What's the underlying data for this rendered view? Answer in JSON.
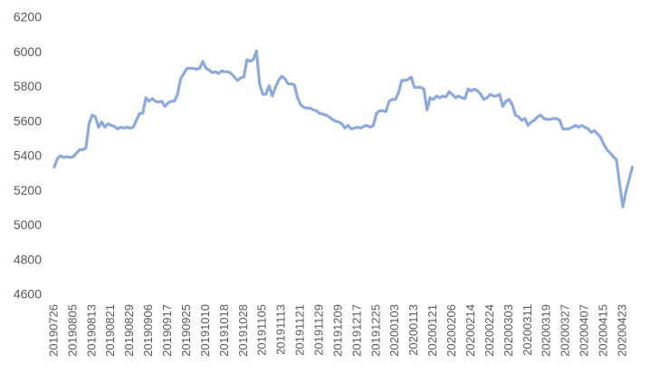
{
  "chart_data": {
    "type": "line",
    "color": "#8eaadb",
    "ylim": [
      4600,
      6200
    ],
    "yticks": [
      4600,
      4800,
      5000,
      5200,
      5400,
      5600,
      5800,
      6000,
      6200
    ],
    "grid": false,
    "categories": [
      "20190726",
      null,
      null,
      null,
      null,
      null,
      "20190805",
      null,
      null,
      null,
      null,
      null,
      "20190813",
      null,
      null,
      null,
      null,
      null,
      "20190821",
      null,
      null,
      null,
      null,
      null,
      "20190829",
      null,
      null,
      null,
      null,
      null,
      "20190906",
      null,
      null,
      null,
      null,
      null,
      "20190917",
      null,
      null,
      null,
      null,
      null,
      "20190925",
      null,
      null,
      null,
      null,
      null,
      "20191010",
      null,
      null,
      null,
      null,
      null,
      "20191018",
      null,
      null,
      null,
      null,
      null,
      "20191028",
      null,
      null,
      null,
      null,
      null,
      "20191105",
      null,
      null,
      null,
      null,
      null,
      "20191113",
      null,
      null,
      null,
      null,
      null,
      "20191121",
      null,
      null,
      null,
      null,
      null,
      "20191129",
      null,
      null,
      null,
      null,
      null,
      "20191209",
      null,
      null,
      null,
      null,
      null,
      "20191217",
      null,
      null,
      null,
      null,
      null,
      "20191225",
      null,
      null,
      null,
      null,
      null,
      "20200103",
      null,
      null,
      null,
      null,
      null,
      "20200113",
      null,
      null,
      null,
      null,
      null,
      "20200121",
      null,
      null,
      null,
      null,
      null,
      "20200206",
      null,
      null,
      null,
      null,
      null,
      "20200214",
      null,
      null,
      null,
      null,
      null,
      "20200224",
      null,
      null,
      null,
      null,
      null,
      "20200303",
      null,
      null,
      null,
      null,
      null,
      "20200311",
      null,
      null,
      null,
      null,
      null,
      "20200319",
      null,
      null,
      null,
      null,
      null,
      "20200327",
      null,
      null,
      null,
      null,
      null,
      "20200407",
      null,
      null,
      null,
      null,
      null,
      "20200415",
      null,
      null,
      null,
      null,
      null,
      "20200423",
      null,
      null,
      null
    ],
    "values": [
      5340,
      5390,
      5405,
      5395,
      5400,
      5395,
      5400,
      5420,
      5440,
      5440,
      5450,
      5590,
      5640,
      5630,
      5570,
      5600,
      5570,
      5590,
      5580,
      5575,
      5560,
      5570,
      5565,
      5570,
      5565,
      5570,
      5610,
      5650,
      5650,
      5740,
      5720,
      5735,
      5720,
      5715,
      5720,
      5690,
      5710,
      5720,
      5720,
      5760,
      5850,
      5880,
      5910,
      5910,
      5910,
      5905,
      5910,
      5950,
      5910,
      5900,
      5885,
      5890,
      5880,
      5895,
      5890,
      5890,
      5880,
      5860,
      5840,
      5855,
      5860,
      5960,
      5950,
      5960,
      6010,
      5820,
      5760,
      5760,
      5810,
      5750,
      5800,
      5840,
      5865,
      5850,
      5820,
      5820,
      5815,
      5740,
      5700,
      5685,
      5680,
      5680,
      5670,
      5665,
      5650,
      5645,
      5640,
      5630,
      5615,
      5605,
      5600,
      5590,
      5565,
      5580,
      5560,
      5565,
      5570,
      5565,
      5575,
      5580,
      5570,
      5580,
      5650,
      5665,
      5665,
      5660,
      5720,
      5730,
      5730,
      5770,
      5840,
      5840,
      5845,
      5860,
      5800,
      5800,
      5800,
      5790,
      5670,
      5740,
      5730,
      5750,
      5740,
      5750,
      5745,
      5775,
      5760,
      5740,
      5750,
      5740,
      5735,
      5790,
      5780,
      5790,
      5780,
      5760,
      5730,
      5740,
      5760,
      5750,
      5750,
      5760,
      5690,
      5720,
      5730,
      5700,
      5640,
      5630,
      5610,
      5620,
      5580,
      5600,
      5610,
      5630,
      5640,
      5620,
      5615,
      5615,
      5620,
      5620,
      5610,
      5560,
      5560,
      5560,
      5570,
      5580,
      5570,
      5580,
      5570,
      5560,
      5540,
      5550,
      5530,
      5510,
      5470,
      5440,
      5420,
      5400,
      5380,
      5240,
      5110,
      5200,
      5270,
      5340
    ]
  }
}
